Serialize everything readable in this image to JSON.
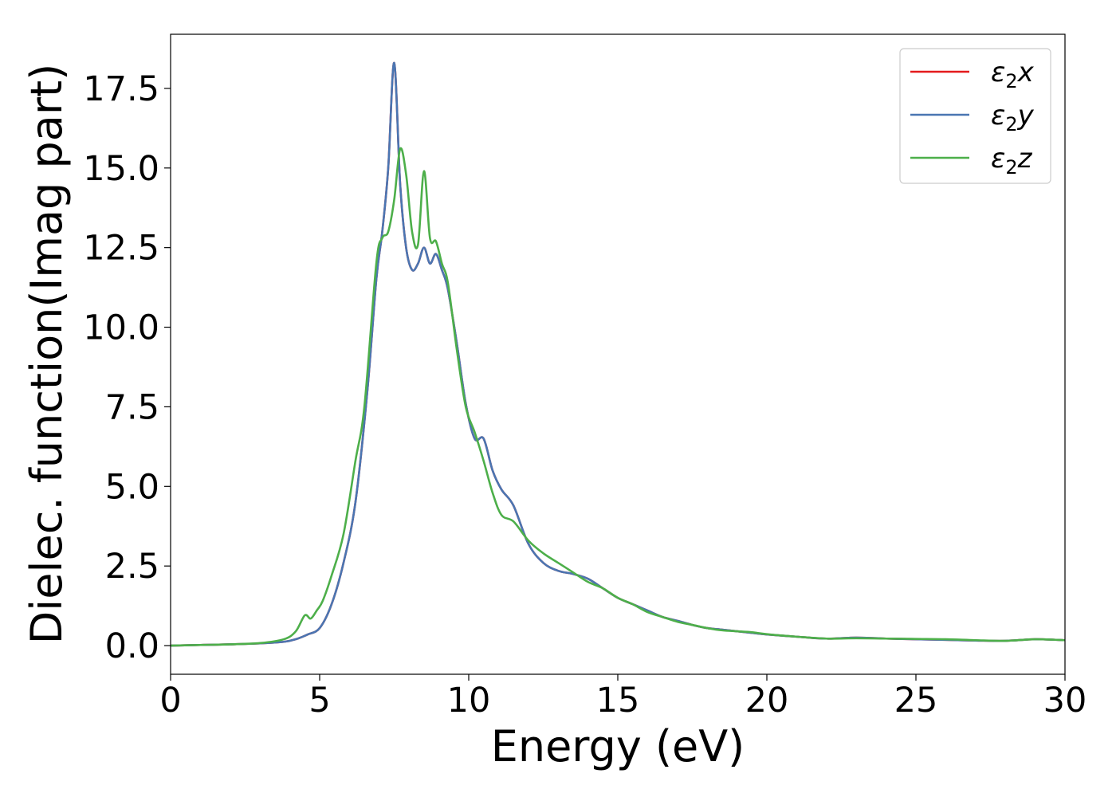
{
  "chart_data": {
    "type": "line",
    "title": "",
    "xlabel": "Energy (eV)",
    "ylabel": "Dielec. function(Imag part)",
    "xlim": [
      0,
      30
    ],
    "ylim": [
      -0.9,
      19.2
    ],
    "xticks": [
      0,
      5,
      10,
      15,
      20,
      25,
      30
    ],
    "xtick_labels": [
      "0",
      "5",
      "10",
      "15",
      "20",
      "25",
      "30"
    ],
    "yticks": [
      0,
      2.5,
      5,
      7.5,
      10,
      12.5,
      15,
      17.5
    ],
    "ytick_labels": [
      "0.0",
      "2.5",
      "5.0",
      "7.5",
      "10.0",
      "12.5",
      "15.0",
      "17.5"
    ],
    "grid": false,
    "legend_position": "top-right",
    "series": [
      {
        "name": "x",
        "legend_symbol": "ε",
        "legend_sub": "2",
        "legend_suffix": "x",
        "color": "#e41a1c",
        "x": [
          0,
          1,
          2,
          3,
          3.8,
          4.2,
          4.6,
          5.0,
          5.4,
          5.8,
          6.2,
          6.6,
          6.9,
          7.1,
          7.3,
          7.5,
          7.7,
          7.9,
          8.1,
          8.3,
          8.5,
          8.7,
          8.9,
          9.1,
          9.3,
          9.6,
          9.9,
          10.2,
          10.5,
          10.8,
          11.1,
          11.5,
          12.0,
          12.5,
          13.0,
          13.5,
          14.0,
          14.5,
          15.0,
          15.5,
          16.0,
          16.5,
          17.0,
          17.5,
          18.0,
          18.5,
          19.0,
          19.5,
          20.0,
          21.0,
          22.0,
          23.0,
          24.0,
          25.0,
          26.0,
          27.0,
          28.0,
          29.0,
          30.0
        ],
        "y": [
          0.0,
          0.02,
          0.04,
          0.07,
          0.12,
          0.2,
          0.35,
          0.55,
          1.3,
          2.6,
          4.5,
          8.0,
          11.5,
          13.0,
          15.0,
          18.3,
          14.5,
          12.5,
          11.8,
          12.0,
          12.5,
          12.0,
          12.3,
          11.8,
          11.2,
          9.5,
          7.6,
          6.5,
          6.5,
          5.5,
          4.9,
          4.4,
          3.2,
          2.6,
          2.35,
          2.25,
          2.1,
          1.8,
          1.5,
          1.3,
          1.1,
          0.9,
          0.78,
          0.65,
          0.55,
          0.5,
          0.45,
          0.4,
          0.35,
          0.28,
          0.22,
          0.25,
          0.22,
          0.2,
          0.18,
          0.16,
          0.15,
          0.2,
          0.17
        ]
      },
      {
        "name": "y",
        "legend_symbol": "ε",
        "legend_sub": "2",
        "legend_suffix": "y",
        "color": "#4a76b2",
        "x": [
          0,
          1,
          2,
          3,
          3.8,
          4.2,
          4.6,
          5.0,
          5.4,
          5.8,
          6.2,
          6.6,
          6.9,
          7.1,
          7.3,
          7.5,
          7.7,
          7.9,
          8.1,
          8.3,
          8.5,
          8.7,
          8.9,
          9.1,
          9.3,
          9.6,
          9.9,
          10.2,
          10.5,
          10.8,
          11.1,
          11.5,
          12.0,
          12.5,
          13.0,
          13.5,
          14.0,
          14.5,
          15.0,
          15.5,
          16.0,
          16.5,
          17.0,
          17.5,
          18.0,
          18.5,
          19.0,
          19.5,
          20.0,
          21.0,
          22.0,
          23.0,
          24.0,
          25.0,
          26.0,
          27.0,
          28.0,
          29.0,
          30.0
        ],
        "y": [
          0.0,
          0.02,
          0.04,
          0.07,
          0.12,
          0.2,
          0.35,
          0.55,
          1.3,
          2.6,
          4.5,
          8.0,
          11.5,
          13.0,
          15.0,
          18.3,
          14.5,
          12.5,
          11.8,
          12.0,
          12.5,
          12.0,
          12.3,
          11.8,
          11.2,
          9.5,
          7.6,
          6.5,
          6.5,
          5.5,
          4.9,
          4.4,
          3.2,
          2.6,
          2.35,
          2.25,
          2.1,
          1.8,
          1.5,
          1.3,
          1.1,
          0.9,
          0.78,
          0.65,
          0.55,
          0.5,
          0.45,
          0.4,
          0.35,
          0.28,
          0.22,
          0.25,
          0.22,
          0.2,
          0.18,
          0.16,
          0.15,
          0.2,
          0.17
        ]
      },
      {
        "name": "z",
        "legend_symbol": "ε",
        "legend_sub": "2",
        "legend_suffix": "z",
        "color": "#4daf4a",
        "x": [
          0,
          1,
          2,
          3,
          3.8,
          4.2,
          4.5,
          4.7,
          4.9,
          5.1,
          5.4,
          5.8,
          6.2,
          6.5,
          6.9,
          7.1,
          7.3,
          7.5,
          7.7,
          7.9,
          8.1,
          8.3,
          8.5,
          8.7,
          8.9,
          9.1,
          9.3,
          9.6,
          9.9,
          10.2,
          10.5,
          10.8,
          11.1,
          11.5,
          12.0,
          12.5,
          13.0,
          13.5,
          14.0,
          14.5,
          15.0,
          15.5,
          16.0,
          16.5,
          17.0,
          17.5,
          18.0,
          18.5,
          19.0,
          19.5,
          20.0,
          21.0,
          22.0,
          23.0,
          24.0,
          25.0,
          26.0,
          27.0,
          28.0,
          29.0,
          30.0
        ],
        "y": [
          0.0,
          0.02,
          0.04,
          0.08,
          0.2,
          0.45,
          0.95,
          0.85,
          1.1,
          1.4,
          2.2,
          3.5,
          5.8,
          7.5,
          12.0,
          12.8,
          13.0,
          14.0,
          15.6,
          14.8,
          13.0,
          12.6,
          14.9,
          12.8,
          12.7,
          12.0,
          11.4,
          9.3,
          7.5,
          6.7,
          5.8,
          4.8,
          4.1,
          3.9,
          3.3,
          2.9,
          2.6,
          2.3,
          2.0,
          1.8,
          1.5,
          1.3,
          1.05,
          0.9,
          0.75,
          0.65,
          0.55,
          0.48,
          0.45,
          0.42,
          0.36,
          0.28,
          0.22,
          0.23,
          0.22,
          0.21,
          0.2,
          0.17,
          0.15,
          0.2,
          0.17
        ]
      }
    ]
  }
}
